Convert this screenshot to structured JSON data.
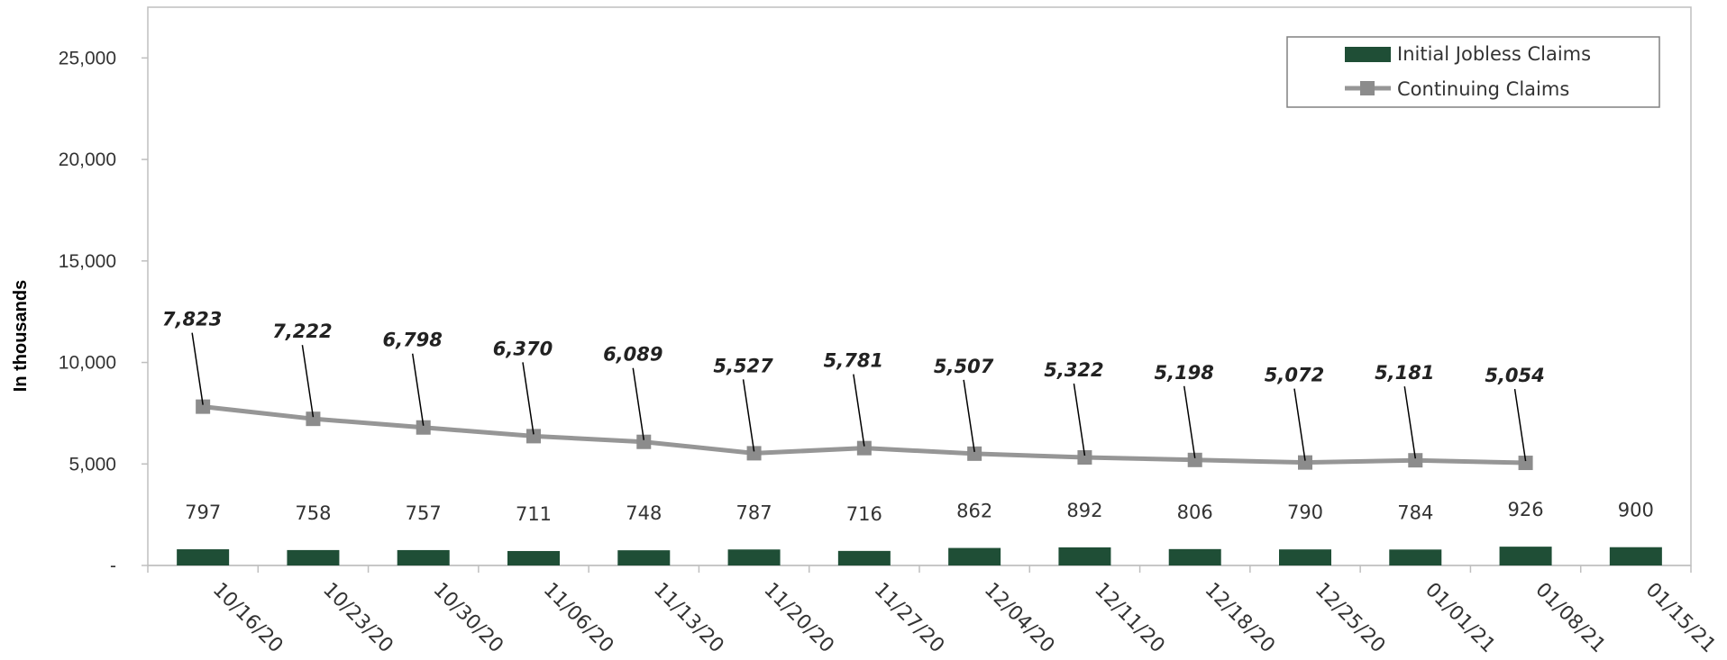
{
  "chart_data": {
    "type": "bar",
    "categories": [
      "10/16/20",
      "10/23/20",
      "10/30/20",
      "11/06/20",
      "11/13/20",
      "11/20/20",
      "11/27/20",
      "12/04/20",
      "12/11/20",
      "12/18/20",
      "12/25/20",
      "01/01/21",
      "01/08/21",
      "01/15/21"
    ],
    "series": [
      {
        "name": "Initial Jobless Claims",
        "type": "bar",
        "values": [
          797,
          758,
          757,
          711,
          748,
          787,
          716,
          862,
          892,
          806,
          790,
          784,
          926,
          900
        ],
        "labels": [
          "797",
          "758",
          "757",
          "711",
          "748",
          "787",
          "716",
          "862",
          "892",
          "806",
          "790",
          "784",
          "926",
          "900"
        ]
      },
      {
        "name": "Continuing Claims",
        "type": "line",
        "values": [
          7823,
          7222,
          6798,
          6370,
          6089,
          5527,
          5781,
          5507,
          5322,
          5198,
          5072,
          5181,
          5054,
          null
        ],
        "labels": [
          "7,823",
          "7,222",
          "6,798",
          "6,370",
          "6,089",
          "5,527",
          "5,781",
          "5,507",
          "5,322",
          "5,198",
          "5,072",
          "5,181",
          "5,054",
          ""
        ]
      }
    ],
    "ylabel": "In thousands",
    "ylim": [
      0,
      27500
    ],
    "yticks": [
      0,
      5000,
      10000,
      15000,
      20000,
      25000
    ],
    "ytick_labels": [
      "-",
      "5,000",
      "10,000",
      "15,000",
      "20,000",
      "25,000"
    ],
    "legend_position": "top-right",
    "grid": false,
    "colors": {
      "bar": "#1f4e36",
      "line": "#969696",
      "marker": "#8c8c8c",
      "axis": "#bfbfbf",
      "leader": "#000000"
    }
  }
}
